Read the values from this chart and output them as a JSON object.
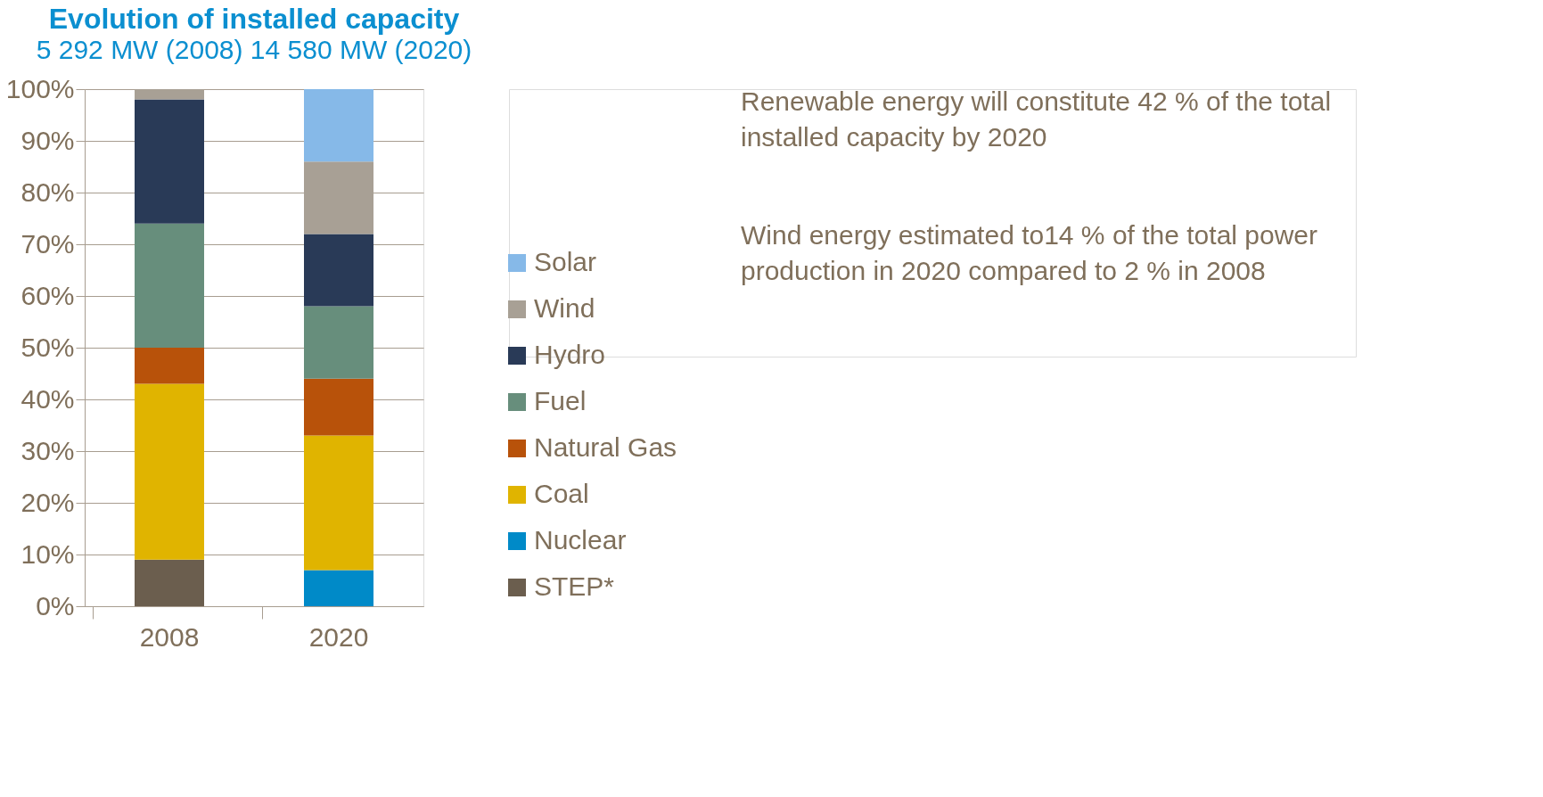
{
  "chart_data": {
    "type": "bar",
    "title": "Evolution of installed capacity",
    "subtitle": "5 292 MW (2008) 14 580 MW (2020)",
    "categories": [
      "2008",
      "2020"
    ],
    "stacked": true,
    "series": [
      {
        "name": "STEP*",
        "color": "#6b5e4e",
        "values": [
          9,
          0
        ]
      },
      {
        "name": "Nuclear",
        "color": "#008ac8",
        "values": [
          0,
          7
        ]
      },
      {
        "name": "Coal",
        "color": "#e0b400",
        "values": [
          34,
          26
        ]
      },
      {
        "name": "Natural Gas",
        "color": "#b8520a",
        "values": [
          7,
          11
        ]
      },
      {
        "name": "Fuel",
        "color": "#678e7c",
        "values": [
          24,
          14
        ]
      },
      {
        "name": "Hydro",
        "color": "#293a57",
        "values": [
          24,
          14
        ]
      },
      {
        "name": "Wind",
        "color": "#a8a095",
        "values": [
          2,
          14
        ]
      },
      {
        "name": "Solar",
        "color": "#86b9e8",
        "values": [
          0,
          14
        ]
      }
    ],
    "ylim": [
      0,
      100
    ],
    "yticks": [
      {
        "value": 0,
        "label": "0%"
      },
      {
        "value": 10,
        "label": "10%"
      },
      {
        "value": 20,
        "label": "20%"
      },
      {
        "value": 30,
        "label": "30%"
      },
      {
        "value": 40,
        "label": "40%"
      },
      {
        "value": 50,
        "label": "50%"
      },
      {
        "value": 60,
        "label": "60%"
      },
      {
        "value": 70,
        "label": "70%"
      },
      {
        "value": 80,
        "label": "80%"
      },
      {
        "value": 90,
        "label": "90%"
      },
      {
        "value": 100,
        "label": "100%"
      }
    ],
    "grid": "y",
    "legend": "right",
    "annotations": [
      "Renewable energy will constitute 42 % of the total installed capacity by 2020",
      "Wind energy estimated to14 % of the total power production in 2020 compared to 2 % in 2008"
    ]
  }
}
